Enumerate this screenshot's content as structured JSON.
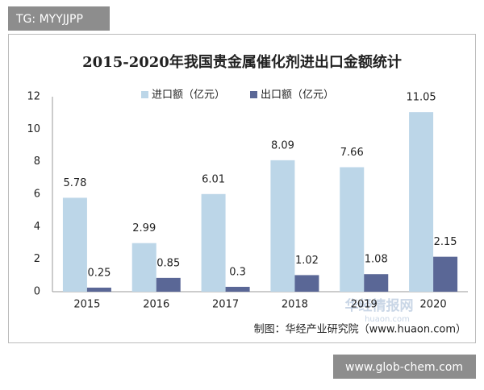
{
  "badge": "TG: MYYJJPP",
  "footer_badge": "www.glob-chem.com",
  "watermark": {
    "title": "华经情报网",
    "url": "huaon.com"
  },
  "chart_data": {
    "type": "bar",
    "title": "2015-2020年我国贵金属催化剂进出口金额统计",
    "categories": [
      "2015",
      "2016",
      "2017",
      "2018",
      "2019",
      "2020"
    ],
    "series": [
      {
        "name": "进口额（亿元）",
        "color": "#bcd6e8",
        "values": [
          5.78,
          2.99,
          6.01,
          8.09,
          7.66,
          11.05
        ]
      },
      {
        "name": "出口额（亿元）",
        "color": "#5a6796",
        "values": [
          0.25,
          0.85,
          0.3,
          1.02,
          1.08,
          2.15
        ]
      }
    ],
    "ylim": [
      0,
      12
    ],
    "yticks": [
      0,
      2,
      4,
      6,
      8,
      10,
      12
    ],
    "grid": false,
    "source": "制图：华经产业研究院（www.huaon.com）"
  }
}
